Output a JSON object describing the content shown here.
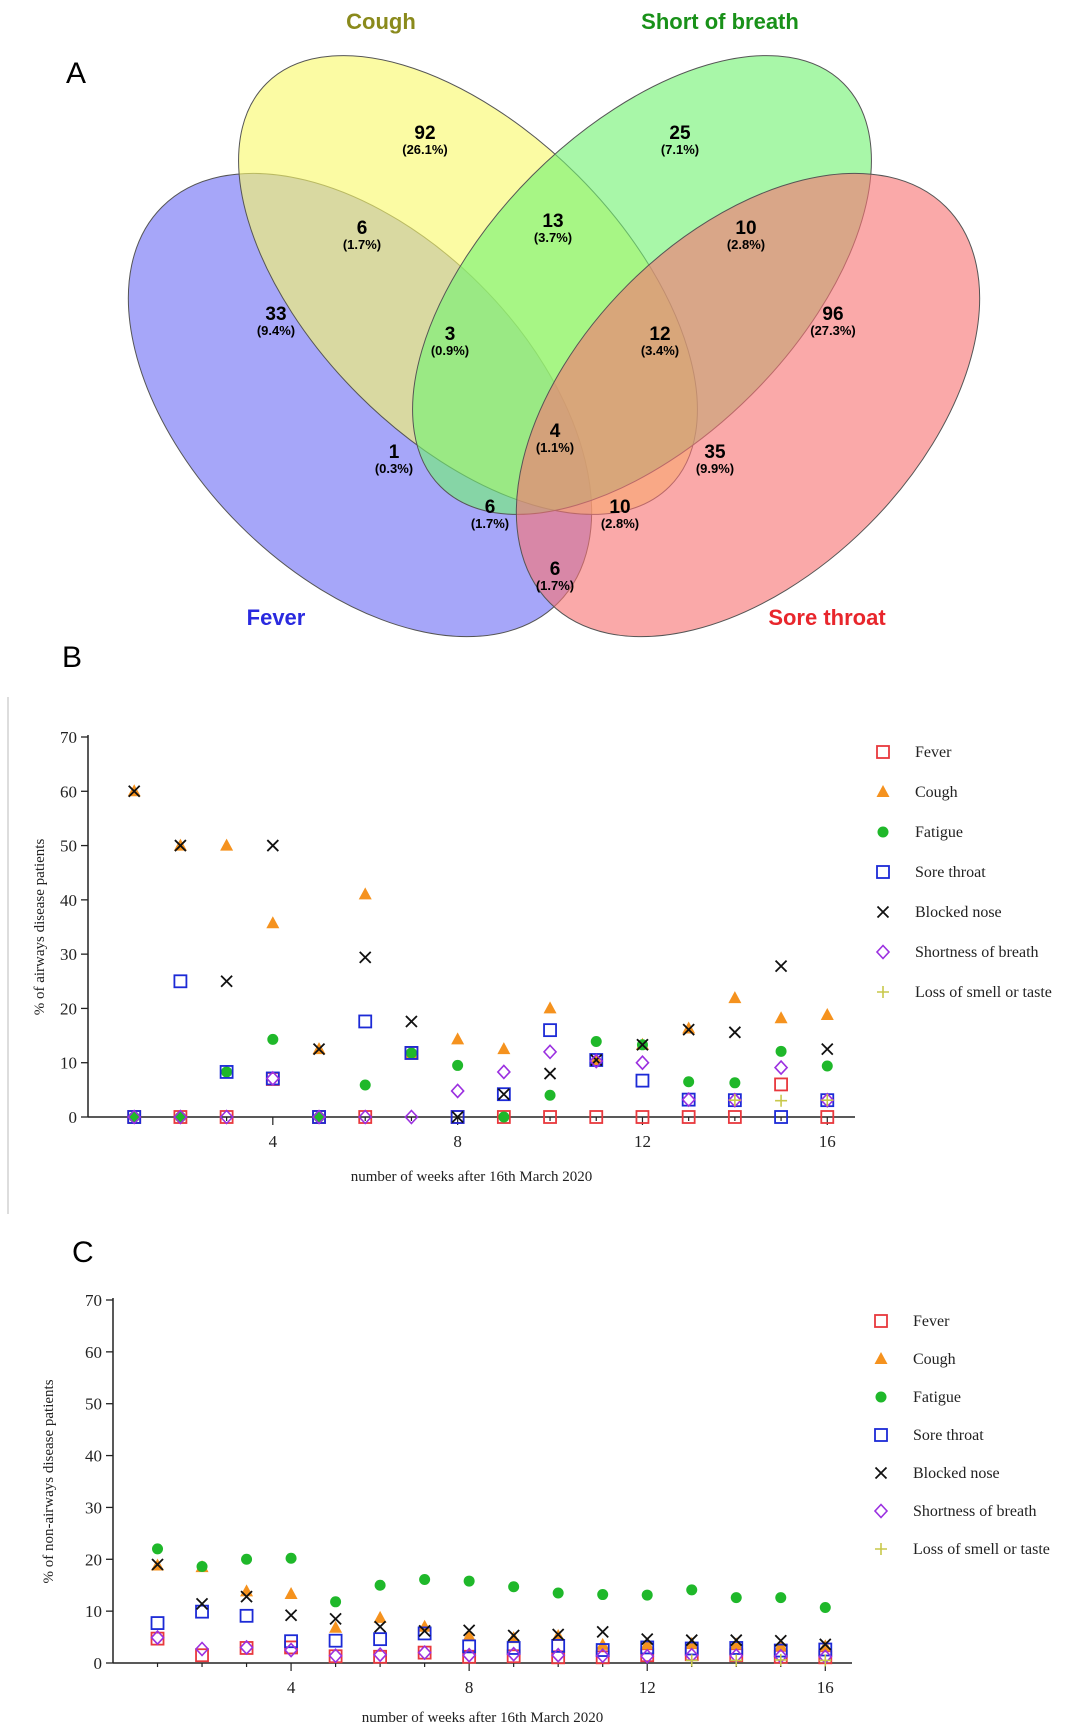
{
  "panel_letters": {
    "a": "A",
    "b": "B",
    "c": "C"
  },
  "venn": {
    "sets": [
      {
        "name": "Fever",
        "color": "#2a2adf",
        "fill": "#6f6ff6"
      },
      {
        "name": "Cough",
        "color": "#8a8a1c",
        "fill": "#f8f86a"
      },
      {
        "name": "Short of breath",
        "color": "#199119",
        "fill": "#72f272"
      },
      {
        "name": "Sore throat",
        "color": "#e8262c",
        "fill": "#f77474"
      }
    ],
    "regions": [
      {
        "id": "cough",
        "count": "92",
        "pct": "(26.1%)"
      },
      {
        "id": "sob",
        "count": "25",
        "pct": "(7.1%)"
      },
      {
        "id": "fever_cough",
        "count": "6",
        "pct": "(1.7%)"
      },
      {
        "id": "cough_sob",
        "count": "13",
        "pct": "(3.7%)"
      },
      {
        "id": "sob_sore",
        "count": "10",
        "pct": "(2.8%)"
      },
      {
        "id": "fever",
        "count": "33",
        "pct": "(9.4%)"
      },
      {
        "id": "fever_cough_sob",
        "count": "3",
        "pct": "(0.9%)"
      },
      {
        "id": "cough_sob_sore",
        "count": "12",
        "pct": "(3.4%)"
      },
      {
        "id": "sore",
        "count": "96",
        "pct": "(27.3%)"
      },
      {
        "id": "fever_sob",
        "count": "1",
        "pct": "(0.3%)"
      },
      {
        "id": "all",
        "count": "4",
        "pct": "(1.1%)"
      },
      {
        "id": "cough_sore",
        "count": "35",
        "pct": "(9.9%)"
      },
      {
        "id": "fever_sob_sore",
        "count": "6",
        "pct": "(1.7%)"
      },
      {
        "id": "fever_cough_sore",
        "count": "10",
        "pct": "(2.8%)"
      },
      {
        "id": "fever_sore",
        "count": "6",
        "pct": "(1.7%)"
      }
    ]
  },
  "chart_data": [
    {
      "panel": "B",
      "type": "scatter",
      "xlabel": "number of  weeks after 16th  March 2020",
      "ylabel": "% of  airways  disease  patients",
      "xlim": [
        0,
        16.6
      ],
      "ylim": [
        0,
        70
      ],
      "xticks": [
        4,
        8,
        12,
        16
      ],
      "yticks": [
        0,
        10,
        20,
        30,
        40,
        50,
        60,
        70
      ],
      "legend_position": "right",
      "series": [
        {
          "name": "Fever",
          "marker": "square-open",
          "color": "#e8383d",
          "points": [
            [
              1,
              0
            ],
            [
              2,
              0
            ],
            [
              3,
              0
            ],
            [
              4,
              7
            ],
            [
              5,
              0
            ],
            [
              6,
              0
            ],
            [
              7,
              11.8
            ],
            [
              8,
              0
            ],
            [
              9,
              0
            ],
            [
              10,
              0
            ],
            [
              11,
              0
            ],
            [
              12,
              0
            ],
            [
              13,
              0
            ],
            [
              14,
              0
            ],
            [
              15,
              6
            ],
            [
              16,
              0
            ]
          ]
        },
        {
          "name": "Cough",
          "marker": "triangle",
          "color": "#f5921e",
          "points": [
            [
              1,
              60
            ],
            [
              2,
              50
            ],
            [
              3,
              50
            ],
            [
              4,
              35.7
            ],
            [
              5,
              12.5
            ],
            [
              6,
              41
            ],
            [
              7,
              11.8
            ],
            [
              8,
              14.3
            ],
            [
              9,
              12.5
            ],
            [
              10,
              20
            ],
            [
              11,
              10.5
            ],
            [
              12,
              13.3
            ],
            [
              13,
              16.3
            ],
            [
              14,
              21.9
            ],
            [
              15,
              18.2
            ],
            [
              16,
              18.8
            ]
          ]
        },
        {
          "name": "Fatigue",
          "marker": "circle",
          "color": "#1fb82a",
          "points": [
            [
              1,
              0
            ],
            [
              2,
              0
            ],
            [
              3,
              8.3
            ],
            [
              4,
              14.3
            ],
            [
              5,
              0
            ],
            [
              6,
              5.9
            ],
            [
              7,
              11.8
            ],
            [
              8,
              9.5
            ],
            [
              9,
              0
            ],
            [
              10,
              4
            ],
            [
              11,
              13.9
            ],
            [
              12,
              13.3
            ],
            [
              13,
              6.5
            ],
            [
              14,
              6.3
            ],
            [
              15,
              12.1
            ],
            [
              16,
              9.4
            ]
          ]
        },
        {
          "name": "Sore throat",
          "marker": "square-open",
          "color": "#1c2ad6",
          "points": [
            [
              1,
              0
            ],
            [
              2,
              25
            ],
            [
              3,
              8.3
            ],
            [
              4,
              7.1
            ],
            [
              5,
              0
            ],
            [
              6,
              17.6
            ],
            [
              7,
              11.8
            ],
            [
              8,
              0
            ],
            [
              9,
              4.2
            ],
            [
              10,
              16
            ],
            [
              11,
              10.5
            ],
            [
              12,
              6.7
            ],
            [
              13,
              3.2
            ],
            [
              14,
              3.1
            ],
            [
              15,
              0
            ],
            [
              16,
              3.1
            ]
          ]
        },
        {
          "name": "Blocked nose",
          "marker": "x",
          "color": "#111111",
          "points": [
            [
              1,
              60
            ],
            [
              2,
              50
            ],
            [
              3,
              25
            ],
            [
              4,
              50
            ],
            [
              5,
              12.5
            ],
            [
              6,
              29.4
            ],
            [
              7,
              17.6
            ],
            [
              8,
              0
            ],
            [
              9,
              4.2
            ],
            [
              10,
              8
            ],
            [
              11,
              10.5
            ],
            [
              12,
              13.3
            ],
            [
              13,
              16.1
            ],
            [
              14,
              15.6
            ],
            [
              15,
              27.8
            ],
            [
              16,
              12.5
            ]
          ]
        },
        {
          "name": "Shortness of breath",
          "marker": "diamond-open",
          "color": "#9b30e0",
          "points": [
            [
              1,
              0
            ],
            [
              2,
              0
            ],
            [
              3,
              0
            ],
            [
              4,
              7.1
            ],
            [
              5,
              0
            ],
            [
              6,
              0
            ],
            [
              7,
              0
            ],
            [
              8,
              4.8
            ],
            [
              9,
              8.3
            ],
            [
              10,
              12
            ],
            [
              11,
              10.3
            ],
            [
              12,
              10
            ],
            [
              13,
              3.2
            ],
            [
              14,
              3.1
            ],
            [
              15,
              9.1
            ],
            [
              16,
              3.1
            ]
          ]
        },
        {
          "name": "Loss of smell or taste",
          "marker": "plus",
          "color": "#c8c84a",
          "points": [
            [
              14,
              3.1
            ],
            [
              15,
              3
            ],
            [
              16,
              3.1
            ]
          ]
        }
      ]
    },
    {
      "panel": "C",
      "type": "scatter",
      "xlabel": "number of  weeks after 16th  March 2020",
      "ylabel": "% of non-airways disease patients",
      "xlim": [
        0,
        16.6
      ],
      "ylim": [
        0,
        70
      ],
      "xticks": [
        4,
        8,
        12,
        16
      ],
      "yticks": [
        0,
        10,
        20,
        30,
        40,
        50,
        60,
        70
      ],
      "legend_position": "right",
      "series": [
        {
          "name": "Fever",
          "marker": "square-open",
          "color": "#e8383d",
          "points": [
            [
              1,
              4.7
            ],
            [
              2,
              1.5
            ],
            [
              3,
              2.9
            ],
            [
              4,
              3
            ],
            [
              5,
              1.3
            ],
            [
              6,
              1.2
            ],
            [
              7,
              2
            ],
            [
              8,
              1.2
            ],
            [
              9,
              1.3
            ],
            [
              10,
              1.1
            ],
            [
              11,
              1.1
            ],
            [
              12,
              1.5
            ],
            [
              13,
              1.7
            ],
            [
              14,
              1.5
            ],
            [
              15,
              1.2
            ],
            [
              16,
              1.1
            ]
          ]
        },
        {
          "name": "Cough",
          "marker": "triangle",
          "color": "#f5921e",
          "points": [
            [
              1,
              18.8
            ],
            [
              2,
              18.5
            ],
            [
              3,
              13.8
            ],
            [
              4,
              13.3
            ],
            [
              5,
              6.8
            ],
            [
              6,
              8.7
            ],
            [
              7,
              7
            ],
            [
              8,
              5.2
            ],
            [
              9,
              4.8
            ],
            [
              10,
              5.2
            ],
            [
              11,
              3.5
            ],
            [
              12,
              3.6
            ],
            [
              13,
              3.7
            ],
            [
              14,
              3.6
            ],
            [
              15,
              3.3
            ],
            [
              16,
              3.2
            ]
          ]
        },
        {
          "name": "Fatigue",
          "marker": "circle",
          "color": "#1fb82a",
          "points": [
            [
              1,
              22
            ],
            [
              2,
              18.6
            ],
            [
              3,
              20
            ],
            [
              4,
              20.2
            ],
            [
              5,
              11.8
            ],
            [
              6,
              15
            ],
            [
              7,
              16.1
            ],
            [
              8,
              15.8
            ],
            [
              9,
              14.7
            ],
            [
              10,
              13.5
            ],
            [
              11,
              13.2
            ],
            [
              12,
              13.1
            ],
            [
              13,
              14.1
            ],
            [
              14,
              12.6
            ],
            [
              15,
              12.6
            ],
            [
              16,
              10.7
            ]
          ]
        },
        {
          "name": "Sore throat",
          "marker": "square-open",
          "color": "#1c2ad6",
          "points": [
            [
              1,
              7.7
            ],
            [
              2,
              9.9
            ],
            [
              3,
              9.1
            ],
            [
              4,
              4.2
            ],
            [
              5,
              4.3
            ],
            [
              6,
              4.6
            ],
            [
              7,
              5.7
            ],
            [
              8,
              3.2
            ],
            [
              9,
              2.9
            ],
            [
              10,
              3.3
            ],
            [
              11,
              2.5
            ],
            [
              12,
              3
            ],
            [
              13,
              2.8
            ],
            [
              14,
              2.9
            ],
            [
              15,
              2.4
            ],
            [
              16,
              2.6
            ]
          ]
        },
        {
          "name": "Blocked nose",
          "marker": "x",
          "color": "#111111",
          "points": [
            [
              1,
              19
            ],
            [
              2,
              11.4
            ],
            [
              3,
              12.8
            ],
            [
              4,
              9.2
            ],
            [
              5,
              8.5
            ],
            [
              6,
              7
            ],
            [
              7,
              6.2
            ],
            [
              8,
              6.3
            ],
            [
              9,
              5.3
            ],
            [
              10,
              5.5
            ],
            [
              11,
              6
            ],
            [
              12,
              4.6
            ],
            [
              13,
              4.4
            ],
            [
              14,
              4.4
            ],
            [
              15,
              4.3
            ],
            [
              16,
              3.6
            ]
          ]
        },
        {
          "name": "Shortness of breath",
          "marker": "diamond-open",
          "color": "#9b30e0",
          "points": [
            [
              1,
              4.9
            ],
            [
              2,
              2.7
            ],
            [
              3,
              3
            ],
            [
              4,
              2.5
            ],
            [
              5,
              1.4
            ],
            [
              6,
              1.6
            ],
            [
              7,
              2
            ],
            [
              8,
              1.5
            ],
            [
              9,
              1.7
            ],
            [
              10,
              1.5
            ],
            [
              11,
              1.4
            ],
            [
              12,
              1.3
            ],
            [
              13,
              1.5
            ],
            [
              14,
              1.4
            ],
            [
              15,
              1.3
            ],
            [
              16,
              1.2
            ]
          ]
        },
        {
          "name": "Loss of smell or taste",
          "marker": "plus",
          "color": "#c8c84a",
          "points": [
            [
              13,
              0.5
            ],
            [
              14,
              0.5
            ],
            [
              15,
              0.6
            ],
            [
              16,
              0.5
            ]
          ]
        }
      ]
    }
  ]
}
